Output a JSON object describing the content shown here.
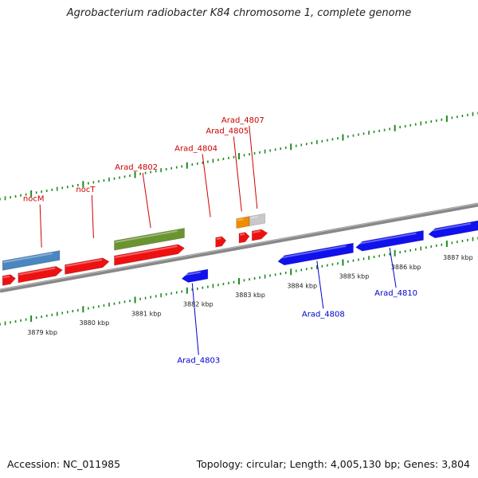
{
  "title": "Agrobacterium radiobacter K84 chromosome 1, complete genome",
  "footer": {
    "accession": "Accession: NC_011985",
    "topology": "Topology: circular; Length: 4,005,130 bp; Genes: 3,804"
  },
  "colors": {
    "forward_gene": "#ee1111",
    "reverse_gene": "#1111ee",
    "steelblue_gene": "#4a86c0",
    "olive_gene": "#6a9430",
    "orange_gene": "#f08c00",
    "grey_gene": "#c8c8c8",
    "backbone": "#888888",
    "ticks": "#1f8a1f",
    "forward_label": "#cc0000",
    "reverse_label": "#0000cc"
  },
  "scale": {
    "unit": "kbp",
    "min": 3878.4,
    "max": 3887.6
  },
  "kbp_labels": [
    "3879 kbp",
    "3880 kbp",
    "3881 kbp",
    "3882 kbp",
    "3883 kbp",
    "3884 kbp",
    "3885 kbp",
    "3886 kbp",
    "3887 kbp"
  ],
  "genes_forward": [
    {
      "start": 3878.45,
      "end": 3878.7,
      "color": "forward_gene"
    },
    {
      "start": 3878.75,
      "end": 3879.6,
      "color": "forward_gene"
    },
    {
      "start": 3879.65,
      "end": 3880.5,
      "color": "forward_gene"
    },
    {
      "start": 3880.6,
      "end": 3881.95,
      "color": "forward_gene"
    },
    {
      "start": 3882.55,
      "end": 3882.75,
      "color": "forward_gene"
    },
    {
      "start": 3883.0,
      "end": 3883.2,
      "color": "forward_gene"
    },
    {
      "start": 3883.25,
      "end": 3883.55,
      "color": "forward_gene"
    }
  ],
  "genes_upper": [
    {
      "start": 3878.45,
      "end": 3879.55,
      "color": "steelblue_gene"
    },
    {
      "start": 3880.6,
      "end": 3881.95,
      "color": "olive_gene"
    },
    {
      "start": 3882.95,
      "end": 3883.2,
      "color": "orange_gene"
    },
    {
      "start": 3883.2,
      "end": 3883.5,
      "color": "grey_gene"
    }
  ],
  "genes_reverse": [
    {
      "start": 3881.9,
      "end": 3882.4,
      "color": "reverse_gene"
    },
    {
      "start": 3883.75,
      "end": 3885.2,
      "color": "reverse_gene"
    },
    {
      "start": 3885.25,
      "end": 3886.55,
      "color": "reverse_gene"
    },
    {
      "start": 3886.65,
      "end": 3887.6,
      "color": "reverse_gene"
    }
  ],
  "labels_forward": [
    {
      "text": "nocM",
      "pos": 3879.2
    },
    {
      "text": "nocT",
      "pos": 3880.2
    },
    {
      "text": "Arad_4802",
      "pos": 3881.3
    },
    {
      "text": "Arad_4804",
      "pos": 3882.45
    },
    {
      "text": "Arad_4805",
      "pos": 3883.05
    },
    {
      "text": "Arad_4807",
      "pos": 3883.35
    }
  ],
  "labels_reverse": [
    {
      "text": "Arad_4803",
      "pos": 3882.1
    },
    {
      "text": "Arad_4808",
      "pos": 3884.5
    },
    {
      "text": "Arad_4810",
      "pos": 3885.9
    }
  ]
}
